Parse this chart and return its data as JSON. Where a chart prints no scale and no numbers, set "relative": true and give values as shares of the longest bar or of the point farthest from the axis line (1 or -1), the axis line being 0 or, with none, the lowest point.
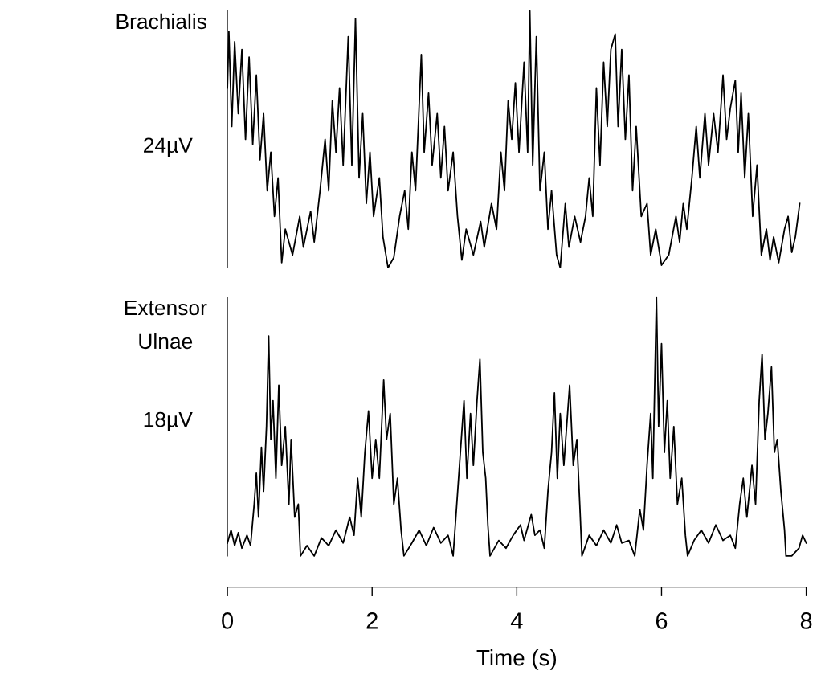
{
  "chart_data": [
    {
      "type": "line",
      "relative": true,
      "ylabel": "Brachialis",
      "annotations": [
        "24µV"
      ],
      "color": "#000000",
      "xlim": [
        0,
        8
      ],
      "tick_labels": false,
      "x": [
        0.0,
        0.02,
        0.06,
        0.1,
        0.15,
        0.2,
        0.25,
        0.3,
        0.35,
        0.4,
        0.45,
        0.5,
        0.55,
        0.6,
        0.65,
        0.7,
        0.75,
        0.8,
        0.9,
        1.0,
        1.05,
        1.15,
        1.2,
        1.28,
        1.35,
        1.4,
        1.45,
        1.5,
        1.55,
        1.6,
        1.67,
        1.72,
        1.77,
        1.82,
        1.87,
        1.92,
        1.97,
        2.02,
        2.1,
        2.15,
        2.22,
        2.3,
        2.38,
        2.45,
        2.5,
        2.55,
        2.6,
        2.68,
        2.72,
        2.78,
        2.83,
        2.9,
        2.95,
        3.0,
        3.05,
        3.12,
        3.18,
        3.24,
        3.3,
        3.4,
        3.5,
        3.55,
        3.65,
        3.72,
        3.78,
        3.83,
        3.88,
        3.93,
        3.98,
        4.03,
        4.1,
        4.15,
        4.18,
        4.22,
        4.27,
        4.32,
        4.38,
        4.43,
        4.48,
        4.55,
        4.6,
        4.67,
        4.72,
        4.8,
        4.88,
        4.95,
        5.0,
        5.05,
        5.1,
        5.15,
        5.2,
        5.25,
        5.3,
        5.36,
        5.4,
        5.45,
        5.5,
        5.55,
        5.6,
        5.65,
        5.72,
        5.8,
        5.85,
        5.92,
        6.0,
        6.1,
        6.2,
        6.25,
        6.3,
        6.35,
        6.42,
        6.48,
        6.53,
        6.6,
        6.65,
        6.72,
        6.78,
        6.85,
        6.9,
        6.95,
        7.02,
        7.06,
        7.1,
        7.15,
        7.2,
        7.26,
        7.32,
        7.38,
        7.45,
        7.5,
        7.55,
        7.62,
        7.7,
        7.75,
        7.8,
        7.85,
        7.91
      ],
      "values": [
        0.7,
        0.92,
        0.55,
        0.88,
        0.6,
        0.85,
        0.5,
        0.82,
        0.48,
        0.75,
        0.42,
        0.6,
        0.3,
        0.45,
        0.2,
        0.35,
        0.02,
        0.15,
        0.05,
        0.2,
        0.08,
        0.22,
        0.1,
        0.3,
        0.5,
        0.3,
        0.65,
        0.45,
        0.7,
        0.4,
        0.9,
        0.4,
        0.97,
        0.35,
        0.6,
        0.25,
        0.45,
        0.2,
        0.35,
        0.12,
        0.0,
        0.04,
        0.2,
        0.3,
        0.15,
        0.45,
        0.3,
        0.83,
        0.45,
        0.68,
        0.4,
        0.6,
        0.35,
        0.55,
        0.3,
        0.45,
        0.2,
        0.03,
        0.15,
        0.05,
        0.18,
        0.08,
        0.25,
        0.15,
        0.45,
        0.3,
        0.65,
        0.5,
        0.72,
        0.45,
        0.8,
        0.45,
        1.0,
        0.4,
        0.9,
        0.3,
        0.45,
        0.15,
        0.3,
        0.05,
        0.0,
        0.25,
        0.08,
        0.2,
        0.1,
        0.2,
        0.35,
        0.2,
        0.7,
        0.4,
        0.8,
        0.55,
        0.85,
        0.91,
        0.55,
        0.85,
        0.5,
        0.75,
        0.3,
        0.55,
        0.2,
        0.25,
        0.05,
        0.15,
        0.01,
        0.05,
        0.2,
        0.1,
        0.25,
        0.15,
        0.35,
        0.55,
        0.35,
        0.6,
        0.4,
        0.6,
        0.45,
        0.75,
        0.5,
        0.62,
        0.73,
        0.45,
        0.68,
        0.35,
        0.6,
        0.2,
        0.4,
        0.05,
        0.15,
        0.03,
        0.12,
        0.02,
        0.15,
        0.2,
        0.06,
        0.12,
        0.25
      ]
    },
    {
      "type": "line",
      "relative": true,
      "ylabel": "Extensor\nUlnae",
      "annotations": [
        "18µV"
      ],
      "xlabel": "Time (s)",
      "color": "#000000",
      "xlim": [
        0,
        8
      ],
      "xticks": [
        0,
        2,
        4,
        6,
        8
      ],
      "tick_labels": "x",
      "x": [
        0.0,
        0.05,
        0.1,
        0.15,
        0.2,
        0.27,
        0.32,
        0.37,
        0.4,
        0.43,
        0.47,
        0.5,
        0.54,
        0.57,
        0.6,
        0.63,
        0.67,
        0.71,
        0.75,
        0.8,
        0.85,
        0.88,
        0.93,
        0.98,
        1.01,
        1.1,
        1.2,
        1.3,
        1.4,
        1.5,
        1.6,
        1.69,
        1.75,
        1.8,
        1.85,
        1.9,
        1.95,
        2.0,
        2.05,
        2.1,
        2.16,
        2.2,
        2.25,
        2.3,
        2.35,
        2.4,
        2.44,
        2.55,
        2.65,
        2.75,
        2.85,
        2.95,
        3.05,
        3.12,
        3.17,
        3.22,
        3.27,
        3.31,
        3.36,
        3.4,
        3.45,
        3.49,
        3.53,
        3.57,
        3.6,
        3.63,
        3.75,
        3.85,
        3.95,
        4.05,
        4.1,
        4.2,
        4.25,
        4.32,
        4.38,
        4.43,
        4.48,
        4.52,
        4.56,
        4.6,
        4.65,
        4.73,
        4.78,
        4.83,
        4.87,
        4.9,
        5.0,
        5.1,
        5.2,
        5.3,
        5.38,
        5.45,
        5.55,
        5.63,
        5.7,
        5.75,
        5.8,
        5.85,
        5.88,
        5.93,
        5.96,
        6.0,
        6.04,
        6.08,
        6.12,
        6.17,
        6.22,
        6.28,
        6.33,
        6.36,
        6.45,
        6.55,
        6.65,
        6.75,
        6.85,
        6.95,
        7.02,
        7.08,
        7.13,
        7.18,
        7.25,
        7.3,
        7.35,
        7.39,
        7.43,
        7.47,
        7.52,
        7.56,
        7.6,
        7.65,
        7.7,
        7.72,
        7.8,
        7.9,
        7.95,
        8.0
      ],
      "values": [
        0.05,
        0.1,
        0.04,
        0.09,
        0.03,
        0.08,
        0.04,
        0.2,
        0.32,
        0.15,
        0.42,
        0.25,
        0.5,
        0.85,
        0.45,
        0.6,
        0.3,
        0.66,
        0.35,
        0.5,
        0.2,
        0.45,
        0.15,
        0.2,
        0.0,
        0.04,
        0.0,
        0.07,
        0.04,
        0.1,
        0.05,
        0.15,
        0.08,
        0.3,
        0.15,
        0.4,
        0.56,
        0.3,
        0.45,
        0.3,
        0.68,
        0.45,
        0.55,
        0.2,
        0.3,
        0.1,
        0.0,
        0.05,
        0.1,
        0.04,
        0.11,
        0.05,
        0.08,
        0.0,
        0.2,
        0.4,
        0.6,
        0.3,
        0.55,
        0.35,
        0.6,
        0.76,
        0.4,
        0.3,
        0.12,
        0.0,
        0.06,
        0.03,
        0.08,
        0.12,
        0.06,
        0.16,
        0.08,
        0.1,
        0.03,
        0.25,
        0.4,
        0.63,
        0.3,
        0.55,
        0.35,
        0.66,
        0.35,
        0.45,
        0.2,
        0.0,
        0.08,
        0.04,
        0.1,
        0.05,
        0.12,
        0.05,
        0.06,
        0.0,
        0.18,
        0.1,
        0.35,
        0.55,
        0.3,
        1.0,
        0.5,
        0.82,
        0.4,
        0.6,
        0.3,
        0.5,
        0.2,
        0.3,
        0.08,
        0.0,
        0.06,
        0.1,
        0.05,
        0.12,
        0.06,
        0.08,
        0.03,
        0.2,
        0.3,
        0.15,
        0.35,
        0.2,
        0.6,
        0.78,
        0.45,
        0.55,
        0.73,
        0.4,
        0.45,
        0.25,
        0.1,
        0.0,
        0.0,
        0.03,
        0.08,
        0.05
      ]
    }
  ]
}
